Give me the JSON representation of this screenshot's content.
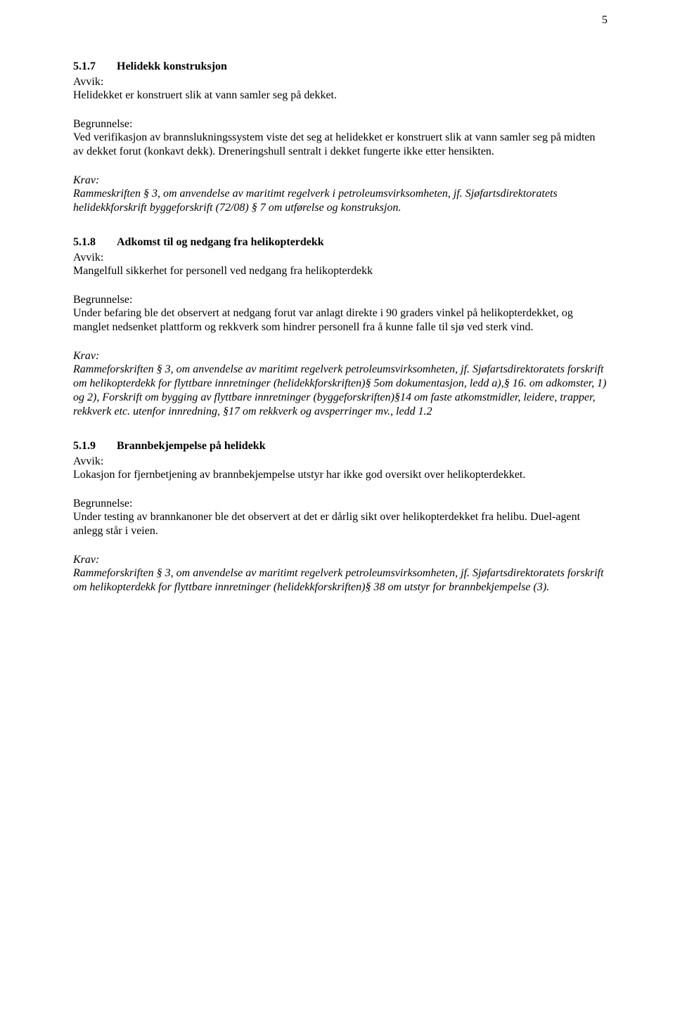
{
  "page_number": "5",
  "sections": [
    {
      "number": "5.1.7",
      "title": "Helidekk konstruksjon",
      "avvik_label": "Avvik:",
      "avvik_text": "Helidekket er konstruert slik at vann samler seg på dekket.",
      "begrunnelse_label": "Begrunnelse:",
      "begrunnelse_text": "Ved verifikasjon av brannslukningssystem viste det seg at helidekket er konstruert slik at vann samler seg på midten av dekket forut (konkavt dekk). Dreneringshull sentralt i dekket fungerte ikke etter hensikten.",
      "krav_label": "Krav:",
      "krav_text": "Rammeskriften § 3, om anvendelse av maritimt regelverk i petroleumsvirksomheten, jf. Sjøfartsdirektoratets helidekkforskrift byggeforskrift (72/08) § 7 om utførelse og konstruksjon."
    },
    {
      "number": "5.1.8",
      "title": "Adkomst til og nedgang fra helikopterdekk",
      "avvik_label": "Avvik:",
      "avvik_text": "Mangelfull sikkerhet for personell ved nedgang fra helikopterdekk",
      "begrunnelse_label": "Begrunnelse:",
      "begrunnelse_text": "Under befaring ble det observert at nedgang forut var anlagt direkte i 90 graders vinkel på helikopterdekket, og manglet nedsenket plattform og rekkverk som hindrer personell fra å kunne falle til sjø ved sterk vind.",
      "krav_label": "Krav:",
      "krav_text": "Rammeforskriften § 3, om anvendelse av maritimt regelverk petroleumsvirksomheten, jf. Sjøfartsdirektoratets forskrift om helikopterdekk for flyttbare innretninger (helidekkforskriften)§ 5om dokumentasjon, ledd a),§ 16. om adkomster, 1) og 2), Forskrift om bygging av flyttbare innretninger (byggeforskriften)§14 om faste atkomstmidler, leidere, trapper, rekkverk etc. utenfor innredning, §17 om rekkverk og avsperringer mv., ledd 1.2"
    },
    {
      "number": "5.1.9",
      "title": "Brannbekjempelse på helidekk",
      "avvik_label": "Avvik:",
      "avvik_text": "Lokasjon for fjernbetjening av brannbekjempelse utstyr har ikke god oversikt over helikopterdekket.",
      "begrunnelse_label": "Begrunnelse:",
      "begrunnelse_text": "Under testing av brannkanoner ble det observert at det er dårlig sikt over helikopterdekket fra helibu. Duel-agent anlegg står i veien.",
      "krav_label": "Krav:",
      "krav_text": "Rammeforskriften § 3, om anvendelse av maritimt regelverk petroleumsvirksomheten, jf. Sjøfartsdirektoratets forskrift om helikopterdekk for flyttbare innretninger (helidekkforskriften)§ 38 om utstyr for brannbekjempelse (3)."
    }
  ]
}
